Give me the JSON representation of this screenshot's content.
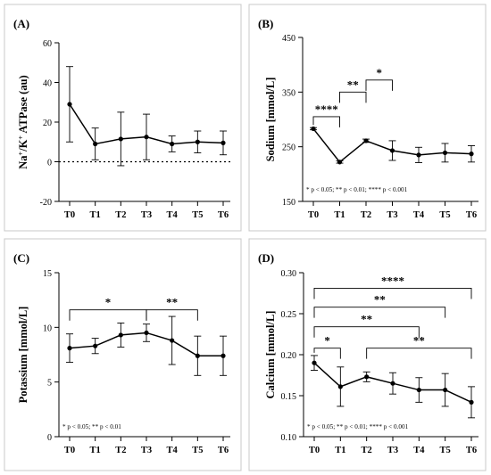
{
  "chart_data": [
    {
      "type": "line",
      "panel_label": "(A)",
      "ylabel_html": [
        "Na",
        "+",
        "/K",
        "+",
        " ATPase (au)"
      ],
      "categories": [
        "T0",
        "T1",
        "T2",
        "T3",
        "T4",
        "T5",
        "T6"
      ],
      "values": [
        29,
        9,
        11.5,
        12.5,
        9,
        10,
        9.5
      ],
      "errors": [
        19,
        8,
        13.5,
        11.5,
        4,
        5.5,
        6
      ],
      "ylim": [
        -20,
        60
      ],
      "yticks": [
        "-20",
        "0",
        "20",
        "40",
        "60"
      ],
      "reference_line": 0,
      "note": ""
    },
    {
      "type": "line",
      "panel_label": "(B)",
      "ylabel": "Sodium [mmol/L]",
      "categories": [
        "T0",
        "T1",
        "T2",
        "T3",
        "T4",
        "T5",
        "T6"
      ],
      "values": [
        283,
        222,
        261,
        243,
        235,
        239,
        237
      ],
      "errors": [
        2,
        2,
        3,
        18,
        14,
        17,
        15
      ],
      "ylim": [
        150,
        450
      ],
      "yticks": [
        "150",
        "250",
        "350",
        "450"
      ],
      "brackets": [
        {
          "from": 0,
          "to": 1,
          "y": 305,
          "label": "****"
        },
        {
          "from": 1,
          "to": 2,
          "y": 350,
          "label": "**"
        },
        {
          "from": 2,
          "to": 3,
          "y": 372,
          "label": "*"
        }
      ],
      "note": "* p < 0.05; ** p < 0.01; **** p < 0.001"
    },
    {
      "type": "line",
      "panel_label": "(C)",
      "ylabel": "Potassium [mmol/L]",
      "categories": [
        "T0",
        "T1",
        "T2",
        "T3",
        "T4",
        "T5",
        "T6"
      ],
      "values": [
        8.1,
        8.3,
        9.3,
        9.5,
        8.8,
        7.4,
        7.4
      ],
      "errors": [
        1.3,
        0.7,
        1.1,
        0.8,
        2.2,
        1.8,
        1.8
      ],
      "ylim": [
        0,
        15
      ],
      "yticks": [
        "0",
        "5",
        "10",
        "15"
      ],
      "brackets": [
        {
          "from": 0,
          "to": 3,
          "y": 11.6,
          "label": "*"
        },
        {
          "from": 3,
          "to": 5,
          "y": 11.6,
          "label": "**"
        }
      ],
      "note": "* p < 0.05; ** p < 0.01"
    },
    {
      "type": "line",
      "panel_label": "(D)",
      "ylabel": "Calcium [mmol/L]",
      "categories": [
        "T0",
        "T1",
        "T2",
        "T3",
        "T4",
        "T5",
        "T6"
      ],
      "values": [
        0.19,
        0.161,
        0.173,
        0.165,
        0.157,
        0.157,
        0.142
      ],
      "errors": [
        0.009,
        0.024,
        0.006,
        0.013,
        0.015,
        0.02,
        0.019
      ],
      "ylim": [
        0.1,
        0.3
      ],
      "yticks": [
        "0.10",
        "0.15",
        "0.20",
        "0.25",
        "0.30"
      ],
      "brackets": [
        {
          "from": 0,
          "to": 1,
          "y": 0.208,
          "label": "*"
        },
        {
          "from": 0,
          "to": 4,
          "y": 0.234,
          "label": "**"
        },
        {
          "from": 0,
          "to": 5,
          "y": 0.258,
          "label": "**"
        },
        {
          "from": 0,
          "to": 6,
          "y": 0.281,
          "label": "****"
        },
        {
          "from": 2,
          "to": 6,
          "y": 0.208,
          "label": "**"
        }
      ],
      "note": "* p < 0.05; ** p < 0.01; **** p < 0.001"
    }
  ]
}
